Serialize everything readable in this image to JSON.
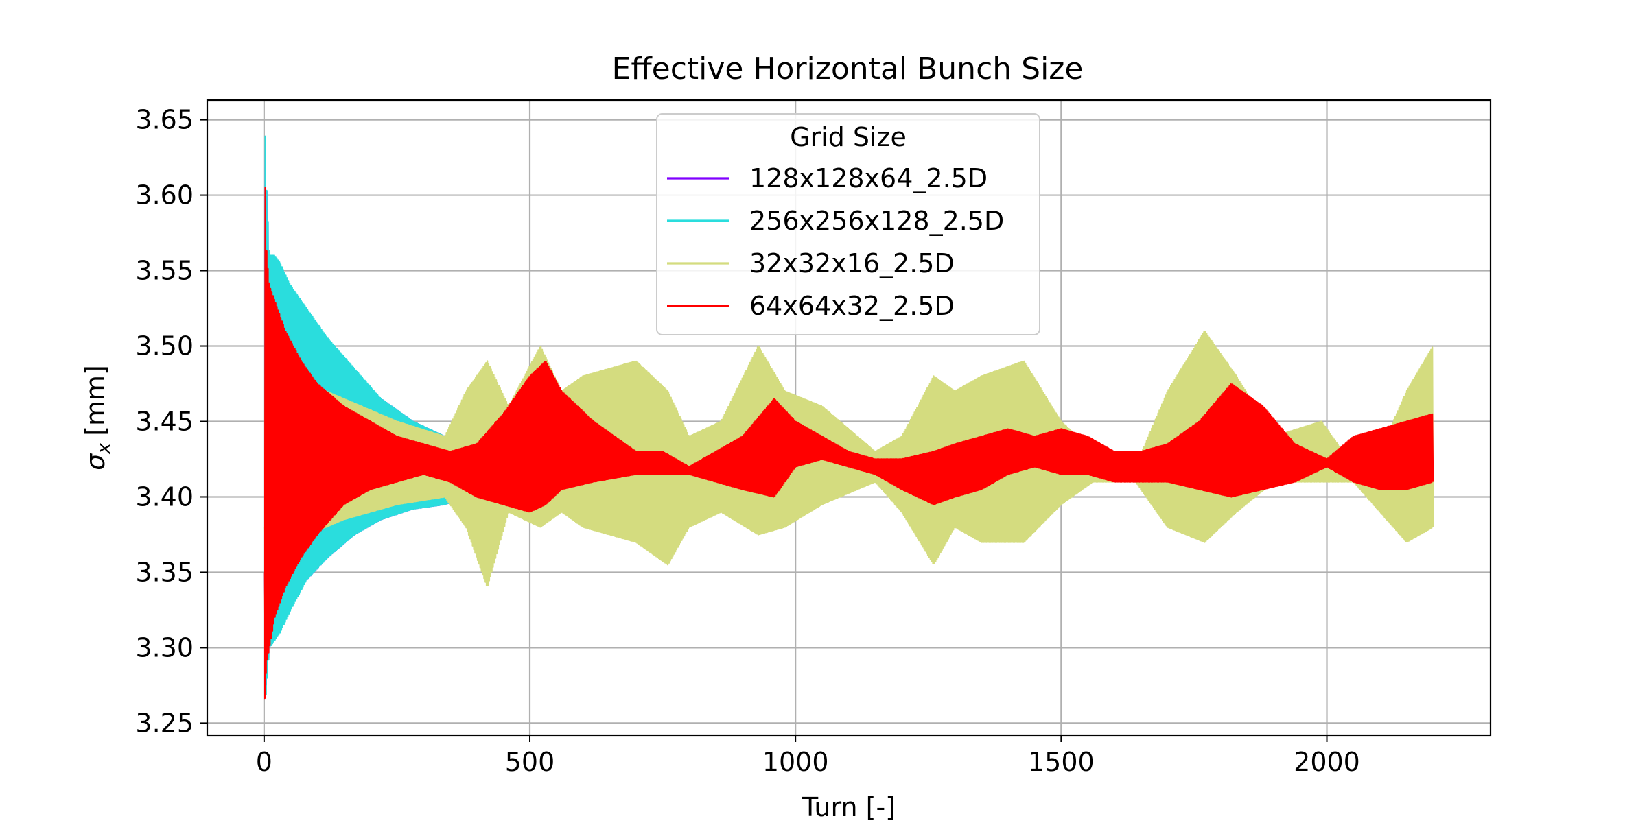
{
  "chart_data": {
    "type": "line",
    "title": "Effective Horizontal Bunch Size",
    "xlabel": "Turn [-]",
    "ylabel_symbol": "σ",
    "ylabel_subscript": "x",
    "ylabel_unit": "[mm]",
    "xlim": [
      -107,
      2308
    ],
    "ylim": [
      3.242,
      3.663
    ],
    "xticks": [
      0,
      500,
      1000,
      1500,
      2000
    ],
    "xtick_labels": [
      "0",
      "500",
      "1000",
      "1500",
      "2000"
    ],
    "yticks": [
      3.25,
      3.3,
      3.35,
      3.4,
      3.45,
      3.5,
      3.55,
      3.6,
      3.65
    ],
    "ytick_labels": [
      "3.25",
      "3.30",
      "3.35",
      "3.40",
      "3.45",
      "3.50",
      "3.55",
      "3.60",
      "3.65"
    ],
    "grid": true,
    "legend": {
      "title": "Grid Size",
      "position": "top-center"
    },
    "series": [
      {
        "name": "128x128x64_2.5D",
        "color": "#8000ff",
        "envelope": {
          "x": [
            0,
            2,
            5,
            10,
            20,
            30,
            50,
            80,
            120,
            170,
            220,
            280,
            340,
            380
          ],
          "upper": [
            3.35,
            3.64,
            3.6,
            3.56,
            3.555,
            3.55,
            3.535,
            3.52,
            3.5,
            3.48,
            3.465,
            3.45,
            3.44,
            3.43
          ],
          "lower": [
            3.35,
            3.27,
            3.28,
            3.3,
            3.31,
            3.315,
            3.33,
            3.345,
            3.36,
            3.375,
            3.385,
            3.392,
            3.395,
            3.4
          ]
        }
      },
      {
        "name": "256x256x128_2.5D",
        "color": "#2adddd",
        "envelope": {
          "x": [
            0,
            2,
            5,
            10,
            20,
            30,
            50,
            80,
            120,
            170,
            220,
            280,
            340,
            380
          ],
          "upper": [
            3.35,
            3.645,
            3.6,
            3.56,
            3.56,
            3.555,
            3.54,
            3.525,
            3.505,
            3.485,
            3.465,
            3.45,
            3.44,
            3.43
          ],
          "lower": [
            3.35,
            3.262,
            3.275,
            3.3,
            3.305,
            3.31,
            3.325,
            3.345,
            3.36,
            3.375,
            3.385,
            3.392,
            3.395,
            3.4
          ]
        }
      },
      {
        "name": "32x32x16_2.5D",
        "color": "#d4dc7f",
        "envelope": {
          "x": [
            0,
            5,
            50,
            150,
            250,
            340,
            380,
            420,
            460,
            520,
            560,
            600,
            700,
            760,
            800,
            860,
            930,
            980,
            1050,
            1150,
            1200,
            1260,
            1300,
            1350,
            1430,
            1500,
            1560,
            1640,
            1700,
            1770,
            1830,
            1900,
            1990,
            2050,
            2100,
            2150,
            2200
          ],
          "upper": [
            3.38,
            3.5,
            3.48,
            3.465,
            3.45,
            3.44,
            3.47,
            3.49,
            3.46,
            3.5,
            3.47,
            3.48,
            3.49,
            3.47,
            3.44,
            3.45,
            3.5,
            3.47,
            3.46,
            3.43,
            3.44,
            3.48,
            3.47,
            3.48,
            3.49,
            3.45,
            3.43,
            3.42,
            3.47,
            3.51,
            3.48,
            3.44,
            3.45,
            3.42,
            3.43,
            3.47,
            3.5
          ],
          "lower": [
            3.38,
            3.34,
            3.37,
            3.385,
            3.395,
            3.4,
            3.38,
            3.34,
            3.39,
            3.38,
            3.39,
            3.38,
            3.37,
            3.355,
            3.38,
            3.39,
            3.375,
            3.38,
            3.395,
            3.41,
            3.39,
            3.355,
            3.38,
            3.37,
            3.37,
            3.395,
            3.41,
            3.41,
            3.38,
            3.37,
            3.39,
            3.41,
            3.41,
            3.41,
            3.39,
            3.37,
            3.38
          ]
        }
      },
      {
        "name": "64x64x32_2.5D",
        "color": "#ff0000",
        "envelope": {
          "x": [
            0,
            1,
            3,
            5,
            10,
            20,
            40,
            70,
            100,
            150,
            200,
            250,
            300,
            350,
            400,
            450,
            500,
            530,
            560,
            620,
            700,
            750,
            800,
            850,
            900,
            960,
            1000,
            1050,
            1100,
            1150,
            1200,
            1260,
            1300,
            1350,
            1400,
            1450,
            1500,
            1550,
            1600,
            1650,
            1700,
            1760,
            1820,
            1880,
            1940,
            2000,
            2050,
            2100,
            2150,
            2200
          ],
          "upper": [
            3.35,
            3.64,
            3.59,
            3.56,
            3.54,
            3.53,
            3.51,
            3.49,
            3.475,
            3.46,
            3.45,
            3.44,
            3.435,
            3.43,
            3.435,
            3.455,
            3.48,
            3.49,
            3.47,
            3.45,
            3.43,
            3.43,
            3.42,
            3.43,
            3.44,
            3.465,
            3.45,
            3.44,
            3.43,
            3.425,
            3.425,
            3.43,
            3.435,
            3.44,
            3.445,
            3.44,
            3.445,
            3.44,
            3.43,
            3.43,
            3.435,
            3.45,
            3.475,
            3.46,
            3.435,
            3.425,
            3.44,
            3.445,
            3.45,
            3.455
          ],
          "lower": [
            3.35,
            3.265,
            3.28,
            3.29,
            3.3,
            3.32,
            3.34,
            3.36,
            3.375,
            3.395,
            3.405,
            3.41,
            3.415,
            3.41,
            3.4,
            3.395,
            3.39,
            3.395,
            3.405,
            3.41,
            3.415,
            3.415,
            3.415,
            3.41,
            3.405,
            3.4,
            3.42,
            3.425,
            3.42,
            3.415,
            3.405,
            3.395,
            3.4,
            3.405,
            3.415,
            3.42,
            3.415,
            3.415,
            3.41,
            3.41,
            3.41,
            3.405,
            3.4,
            3.405,
            3.41,
            3.42,
            3.41,
            3.405,
            3.405,
            3.41
          ]
        }
      }
    ]
  }
}
